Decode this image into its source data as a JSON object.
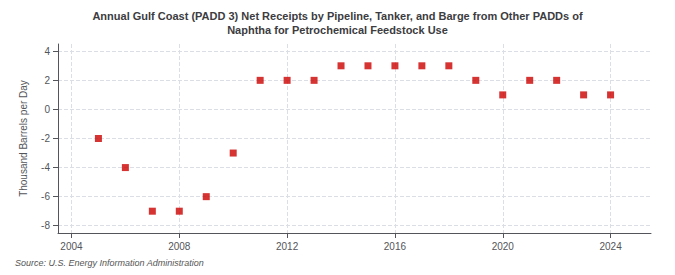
{
  "chart_data": {
    "type": "scatter",
    "title": "Annual Gulf Coast (PADD 3) Net Receipts by Pipeline, Tanker, and Barge from Other PADDs of\nNaphtha for Petrochemical Feedstock Use",
    "ylabel": "Thousand Barrels per Day",
    "annotation": "Source: U.S. Energy Information Administration",
    "x": [
      2005,
      2006,
      2007,
      2008,
      2009,
      2010,
      2011,
      2012,
      2013,
      2014,
      2015,
      2016,
      2017,
      2018,
      2019,
      2020,
      2021,
      2022,
      2023,
      2024
    ],
    "values": [
      -2,
      -4,
      -7,
      -7,
      -6,
      -3,
      2,
      2,
      2,
      3,
      3,
      3,
      3,
      3,
      2,
      1,
      2,
      2,
      1,
      1
    ],
    "color": "#cc0000",
    "marker": "square",
    "xlim": [
      2003.5,
      2025.5
    ],
    "xticks": [
      2004,
      2008,
      2012,
      2016,
      2020,
      2024
    ],
    "ylim": [
      -8.5,
      4.5
    ],
    "yticks": [
      -8,
      -6,
      -4,
      -2,
      0,
      2,
      4
    ],
    "grid": true
  }
}
